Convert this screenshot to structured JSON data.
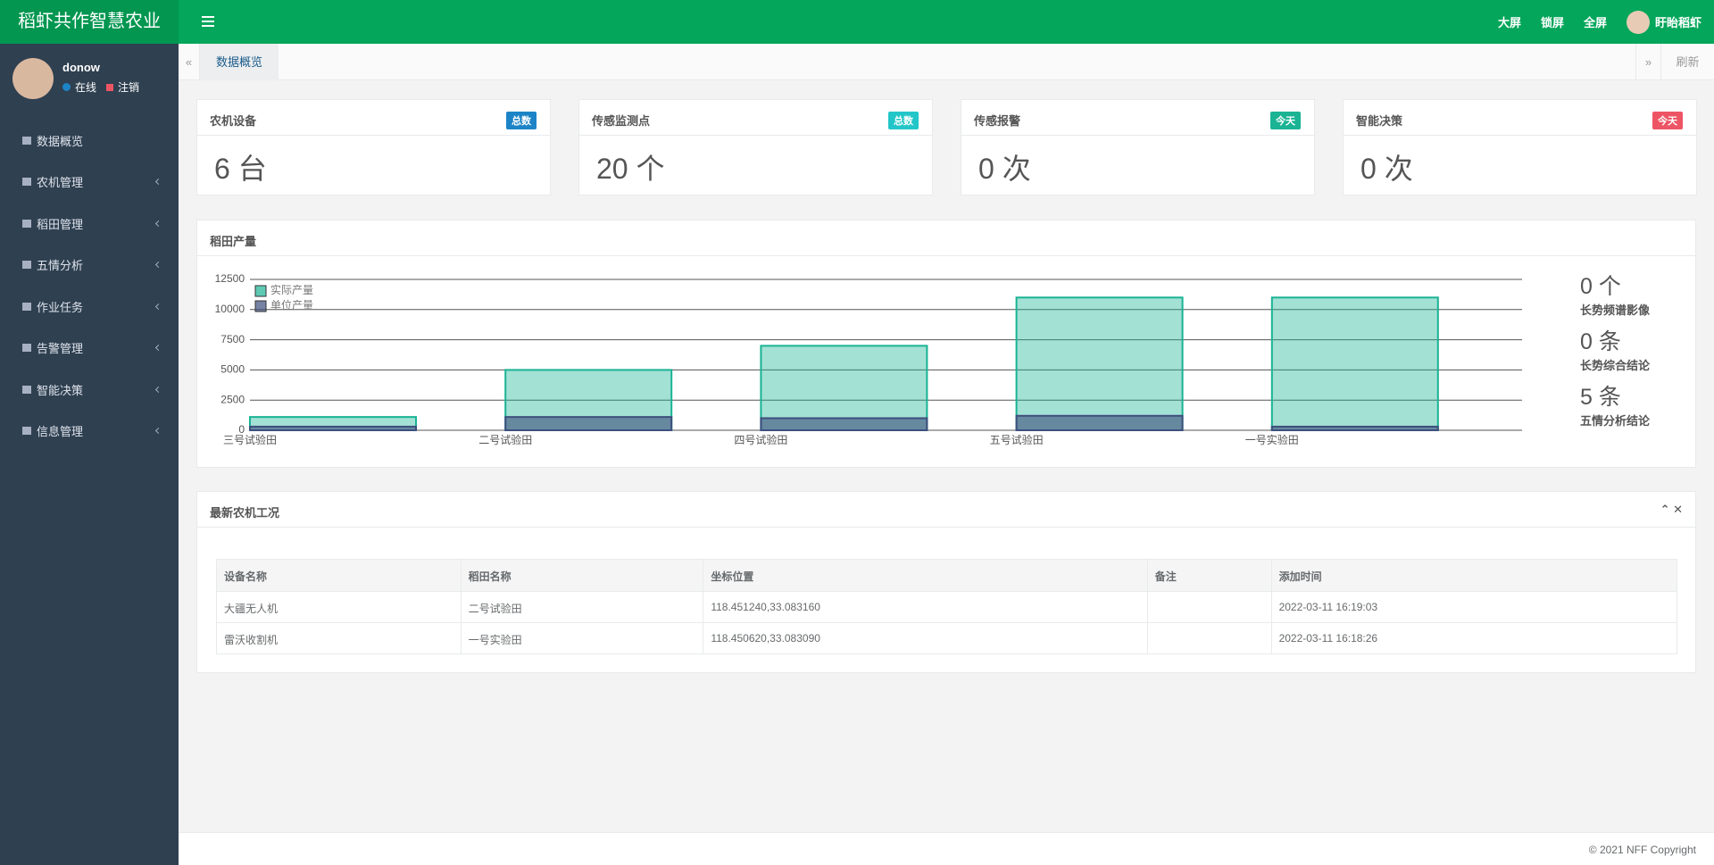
{
  "header": {
    "title": "稻虾共作智慧农业",
    "buttons": [
      "大屏",
      "锁屏",
      "全屏"
    ],
    "user": "盱眙稻虾"
  },
  "sidebar": {
    "user": "donow",
    "status": "在线",
    "logout": "注销",
    "menu": [
      "数据概览",
      "农机管理",
      "稻田管理",
      "五情分析",
      "作业任务",
      "告警管理",
      "智能决策",
      "信息管理"
    ]
  },
  "tabs": {
    "active": "数据概览",
    "refresh": "刷新"
  },
  "cards": [
    {
      "title": "农机设备",
      "badge": "总数",
      "badge_color": "#1c84c6",
      "value": "6 台"
    },
    {
      "title": "传感监测点",
      "badge": "总数",
      "badge_color": "#23c6c8",
      "value": "20 个"
    },
    {
      "title": "传感报警",
      "badge": "今天",
      "badge_color": "#1ab394",
      "value": "0 次"
    },
    {
      "title": "智能决策",
      "badge": "今天",
      "badge_color": "#ed5565",
      "value": "0 次"
    }
  ],
  "chart_data": {
    "type": "bar",
    "title": "稻田产量",
    "categories": [
      "三号试验田",
      "二号试验田",
      "四号试验田",
      "五号试验田",
      "一号实验田"
    ],
    "series": [
      {
        "name": "实际产量",
        "color": "#1ab394",
        "values": [
          1100,
          5000,
          7000,
          11000,
          11000
        ]
      },
      {
        "name": "单位产量",
        "color": "#3d4f7d",
        "values": [
          300,
          1100,
          1000,
          1200,
          300
        ]
      }
    ],
    "ylim": [
      0,
      12500
    ],
    "yticks": [
      0,
      2500,
      5000,
      7500,
      10000,
      12500
    ],
    "grid": true,
    "legend": "top-left"
  },
  "stats": [
    {
      "value": "0 个",
      "label": "长势频谱影像"
    },
    {
      "value": "0 条",
      "label": "长势综合结论"
    },
    {
      "value": "5 条",
      "label": "五情分析结论"
    }
  ],
  "table": {
    "title": "最新农机工况",
    "columns": [
      "设备名称",
      "稻田名称",
      "坐标位置",
      "备注",
      "添加时间"
    ],
    "rows": [
      [
        "大疆无人机",
        "二号试验田",
        "118.451240,33.083160",
        "",
        "2022-03-11 16:19:03"
      ],
      [
        "雷沃收割机",
        "一号实验田",
        "118.450620,33.083090",
        "",
        "2022-03-11 16:18:26"
      ]
    ]
  },
  "footer": "© 2021 NFF Copyright"
}
